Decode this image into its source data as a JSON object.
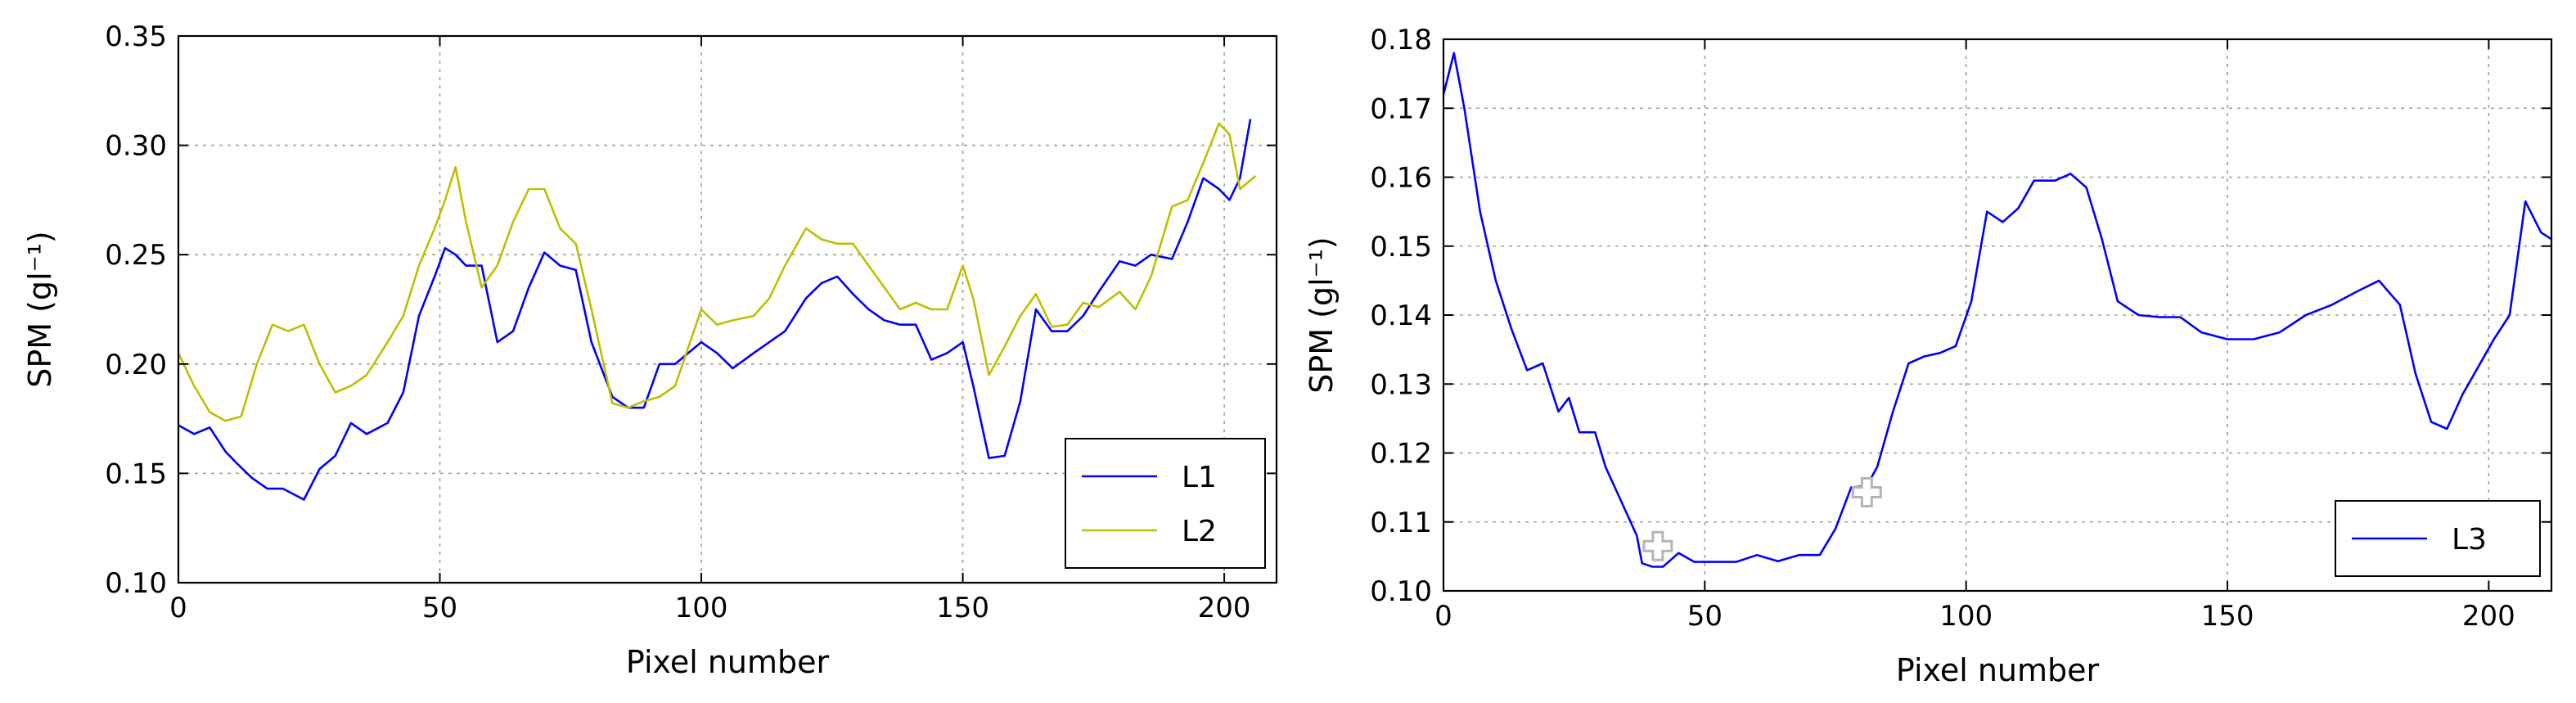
{
  "chart_data": [
    {
      "type": "line",
      "xlabel": "Pixel number",
      "ylabel": "SPM (gl⁻¹)",
      "xlim": [
        0,
        210
      ],
      "ylim": [
        0.1,
        0.35
      ],
      "xticks": [
        0,
        50,
        100,
        150,
        200
      ],
      "yticks": [
        0.1,
        0.15,
        0.2,
        0.25,
        0.3,
        0.35
      ],
      "xtick_labels": [
        "0",
        "50",
        "100",
        "150",
        "200"
      ],
      "ytick_labels": [
        "0.10",
        "0.15",
        "0.20",
        "0.25",
        "0.30",
        "0.35"
      ],
      "grid": true,
      "legend_position": "bottom-right",
      "series": [
        {
          "name": "L1",
          "color": "#0000ff",
          "x": [
            0,
            3,
            6,
            9,
            11,
            14,
            17,
            20,
            24,
            27,
            30,
            33,
            36,
            40,
            43,
            46,
            49,
            51,
            53,
            55,
            58,
            61,
            64,
            67,
            70,
            73,
            76,
            79,
            83,
            86,
            89,
            92,
            95,
            100,
            103,
            106,
            110,
            113,
            116,
            120,
            123,
            126,
            129,
            132,
            135,
            138,
            141,
            144,
            147,
            150,
            152,
            155,
            158,
            161,
            164,
            167,
            170,
            173,
            176,
            180,
            183,
            186,
            190,
            193,
            196,
            199,
            201,
            203,
            205
          ],
          "y": [
            0.172,
            0.168,
            0.171,
            0.16,
            0.155,
            0.148,
            0.143,
            0.143,
            0.138,
            0.152,
            0.158,
            0.173,
            0.168,
            0.173,
            0.187,
            0.222,
            0.24,
            0.253,
            0.25,
            0.245,
            0.245,
            0.21,
            0.215,
            0.235,
            0.251,
            0.245,
            0.243,
            0.21,
            0.185,
            0.18,
            0.18,
            0.2,
            0.2,
            0.21,
            0.205,
            0.198,
            0.205,
            0.21,
            0.215,
            0.23,
            0.237,
            0.24,
            0.232,
            0.225,
            0.22,
            0.218,
            0.218,
            0.202,
            0.205,
            0.21,
            0.19,
            0.157,
            0.158,
            0.183,
            0.225,
            0.215,
            0.215,
            0.222,
            0.233,
            0.247,
            0.245,
            0.25,
            0.248,
            0.265,
            0.285,
            0.28,
            0.275,
            0.285,
            0.312
          ]
        },
        {
          "name": "L2",
          "color": "#bfbf00",
          "x": [
            0,
            3,
            6,
            9,
            12,
            15,
            18,
            21,
            24,
            27,
            30,
            33,
            36,
            40,
            43,
            46,
            49,
            51,
            53,
            55,
            58,
            61,
            64,
            67,
            70,
            73,
            76,
            79,
            83,
            86,
            89,
            92,
            95,
            100,
            103,
            106,
            110,
            113,
            116,
            120,
            123,
            126,
            129,
            132,
            135,
            138,
            141,
            144,
            147,
            150,
            152,
            155,
            158,
            161,
            164,
            167,
            170,
            173,
            176,
            180,
            183,
            186,
            190,
            193,
            196,
            199,
            201,
            203,
            206
          ],
          "y": [
            0.205,
            0.19,
            0.178,
            0.174,
            0.176,
            0.2,
            0.218,
            0.215,
            0.218,
            0.2,
            0.187,
            0.19,
            0.195,
            0.21,
            0.222,
            0.245,
            0.262,
            0.275,
            0.29,
            0.265,
            0.235,
            0.245,
            0.265,
            0.28,
            0.28,
            0.262,
            0.255,
            0.225,
            0.182,
            0.18,
            0.183,
            0.185,
            0.19,
            0.225,
            0.218,
            0.22,
            0.222,
            0.23,
            0.245,
            0.262,
            0.257,
            0.255,
            0.255,
            0.245,
            0.235,
            0.225,
            0.228,
            0.225,
            0.225,
            0.245,
            0.23,
            0.195,
            0.208,
            0.222,
            0.232,
            0.217,
            0.218,
            0.228,
            0.226,
            0.233,
            0.225,
            0.24,
            0.272,
            0.275,
            0.292,
            0.31,
            0.305,
            0.28,
            0.286
          ]
        }
      ]
    },
    {
      "type": "line",
      "xlabel": "Pixel number",
      "ylabel": "SPM (gl⁻¹)",
      "xlim": [
        0,
        212
      ],
      "ylim": [
        0.1,
        0.18
      ],
      "xticks": [
        0,
        50,
        100,
        150,
        200
      ],
      "yticks": [
        0.1,
        0.11,
        0.12,
        0.13,
        0.14,
        0.15,
        0.16,
        0.17,
        0.18
      ],
      "xtick_labels": [
        "0",
        "50",
        "100",
        "150",
        "200"
      ],
      "ytick_labels": [
        "0.10",
        "0.11",
        "0.12",
        "0.13",
        "0.14",
        "0.15",
        "0.16",
        "0.17",
        "0.18"
      ],
      "grid": true,
      "legend_position": "bottom-right",
      "markers": [
        {
          "shape": "cross",
          "x": 41,
          "y": 0.1065
        },
        {
          "shape": "cross",
          "x": 81,
          "y": 0.1143
        }
      ],
      "series": [
        {
          "name": "L3",
          "color": "#0000ff",
          "x": [
            0,
            2,
            4,
            7,
            10,
            13,
            16,
            19,
            22,
            24,
            26,
            29,
            31,
            34,
            37,
            38,
            40,
            42,
            45,
            48,
            52,
            56,
            60,
            64,
            68,
            72,
            75,
            78,
            81,
            83,
            86,
            89,
            92,
            95,
            98,
            101,
            104,
            107,
            110,
            113,
            117,
            120,
            123,
            126,
            129,
            133,
            137,
            141,
            145,
            150,
            155,
            160,
            165,
            170,
            175,
            179,
            183,
            186,
            189,
            192,
            195,
            198,
            201,
            204,
            207,
            210,
            212
          ],
          "y": [
            0.172,
            0.178,
            0.17,
            0.155,
            0.145,
            0.138,
            0.132,
            0.133,
            0.126,
            0.128,
            0.123,
            0.123,
            0.118,
            0.113,
            0.108,
            0.104,
            0.1035,
            0.1035,
            0.1055,
            0.1042,
            0.1042,
            0.1042,
            0.1052,
            0.1043,
            0.1052,
            0.1052,
            0.109,
            0.115,
            0.1152,
            0.118,
            0.126,
            0.133,
            0.134,
            0.1345,
            0.1355,
            0.142,
            0.155,
            0.1535,
            0.1555,
            0.1595,
            0.1595,
            0.1605,
            0.1585,
            0.151,
            0.142,
            0.14,
            0.1397,
            0.1397,
            0.1375,
            0.1365,
            0.1365,
            0.1375,
            0.14,
            0.1415,
            0.1435,
            0.145,
            0.1415,
            0.1315,
            0.1245,
            0.1235,
            0.1285,
            0.1325,
            0.1365,
            0.14,
            0.1565,
            0.152,
            0.151
          ]
        }
      ]
    }
  ]
}
